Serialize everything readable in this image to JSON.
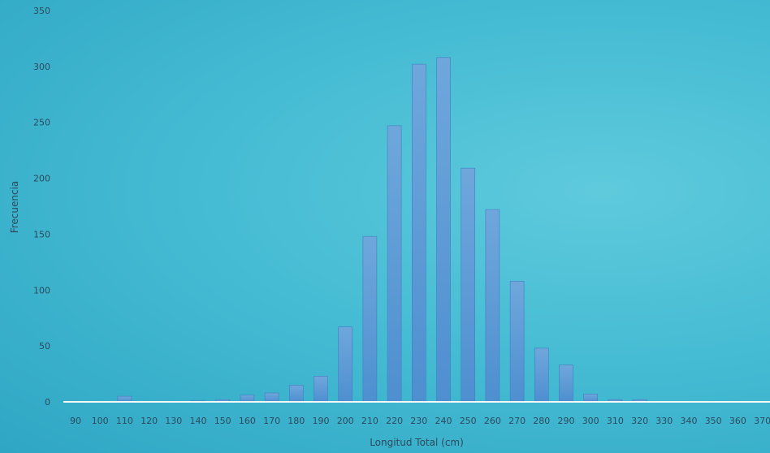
{
  "chart_data": {
    "type": "bar",
    "title": "",
    "xlabel": "Longitud Total (cm)",
    "ylabel": "Frecuencia",
    "ylim": [
      0,
      350
    ],
    "yticks": [
      0,
      50,
      100,
      150,
      200,
      250,
      300,
      350
    ],
    "categories": [
      "90",
      "100",
      "110",
      "120",
      "130",
      "140",
      "150",
      "160",
      "170",
      "180",
      "190",
      "200",
      "210",
      "220",
      "230",
      "240",
      "250",
      "260",
      "270",
      "280",
      "290",
      "300",
      "310",
      "320",
      "330",
      "340",
      "350",
      "360",
      "370"
    ],
    "values": [
      0,
      0,
      5,
      0,
      0,
      1,
      2,
      6,
      8,
      15,
      23,
      67,
      148,
      247,
      302,
      308,
      209,
      172,
      108,
      48,
      33,
      7,
      2,
      2,
      0,
      0,
      0,
      0,
      0
    ],
    "grid": false,
    "colors": {
      "bar": "#5b9bd5",
      "axis_line": "#f2f7fa",
      "text": "#2d4a5c"
    }
  }
}
